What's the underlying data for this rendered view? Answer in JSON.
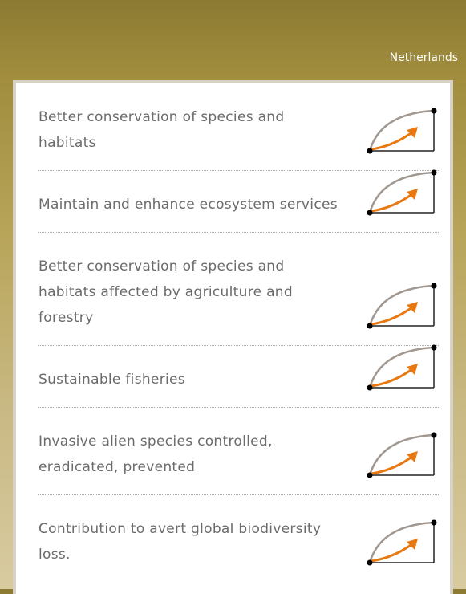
{
  "header": {
    "country": "Netherlands"
  },
  "targets": [
    {
      "label": "Better conservation of species and habitats"
    },
    {
      "label": "Maintain and enhance ecosystem services"
    },
    {
      "label": "Better conservation of species and habitats affected by agriculture and forestry"
    },
    {
      "label": "Sustainable fisheries"
    },
    {
      "label": "Invasive alien species controlled, eradicated, prevented"
    },
    {
      "label": "Contribution to avert global biodiversity loss."
    }
  ]
}
